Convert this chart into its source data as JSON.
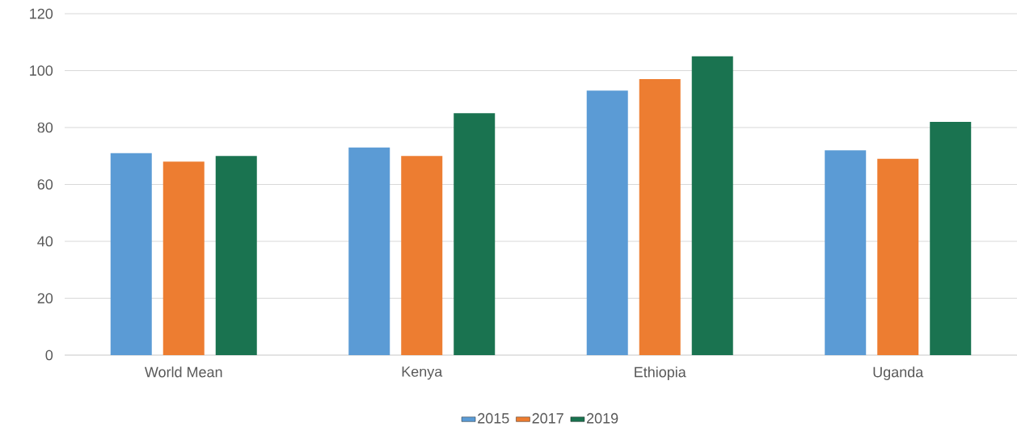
{
  "chart_data": {
    "type": "bar",
    "categories": [
      "World Mean",
      "Kenya",
      "Ethiopia",
      "Uganda"
    ],
    "series": [
      {
        "name": "2015",
        "color": "#5b9bd5",
        "values": [
          71,
          73,
          93,
          72
        ]
      },
      {
        "name": "2017",
        "color": "#ed7d31",
        "values": [
          68,
          70,
          97,
          69
        ]
      },
      {
        "name": "2019",
        "color": "#1a7350",
        "values": [
          70,
          85,
          105,
          82
        ]
      }
    ],
    "ylim": [
      0,
      120
    ],
    "yticks": [
      0,
      20,
      40,
      60,
      80,
      100,
      120
    ],
    "grid": "y",
    "legend": "bottom"
  }
}
